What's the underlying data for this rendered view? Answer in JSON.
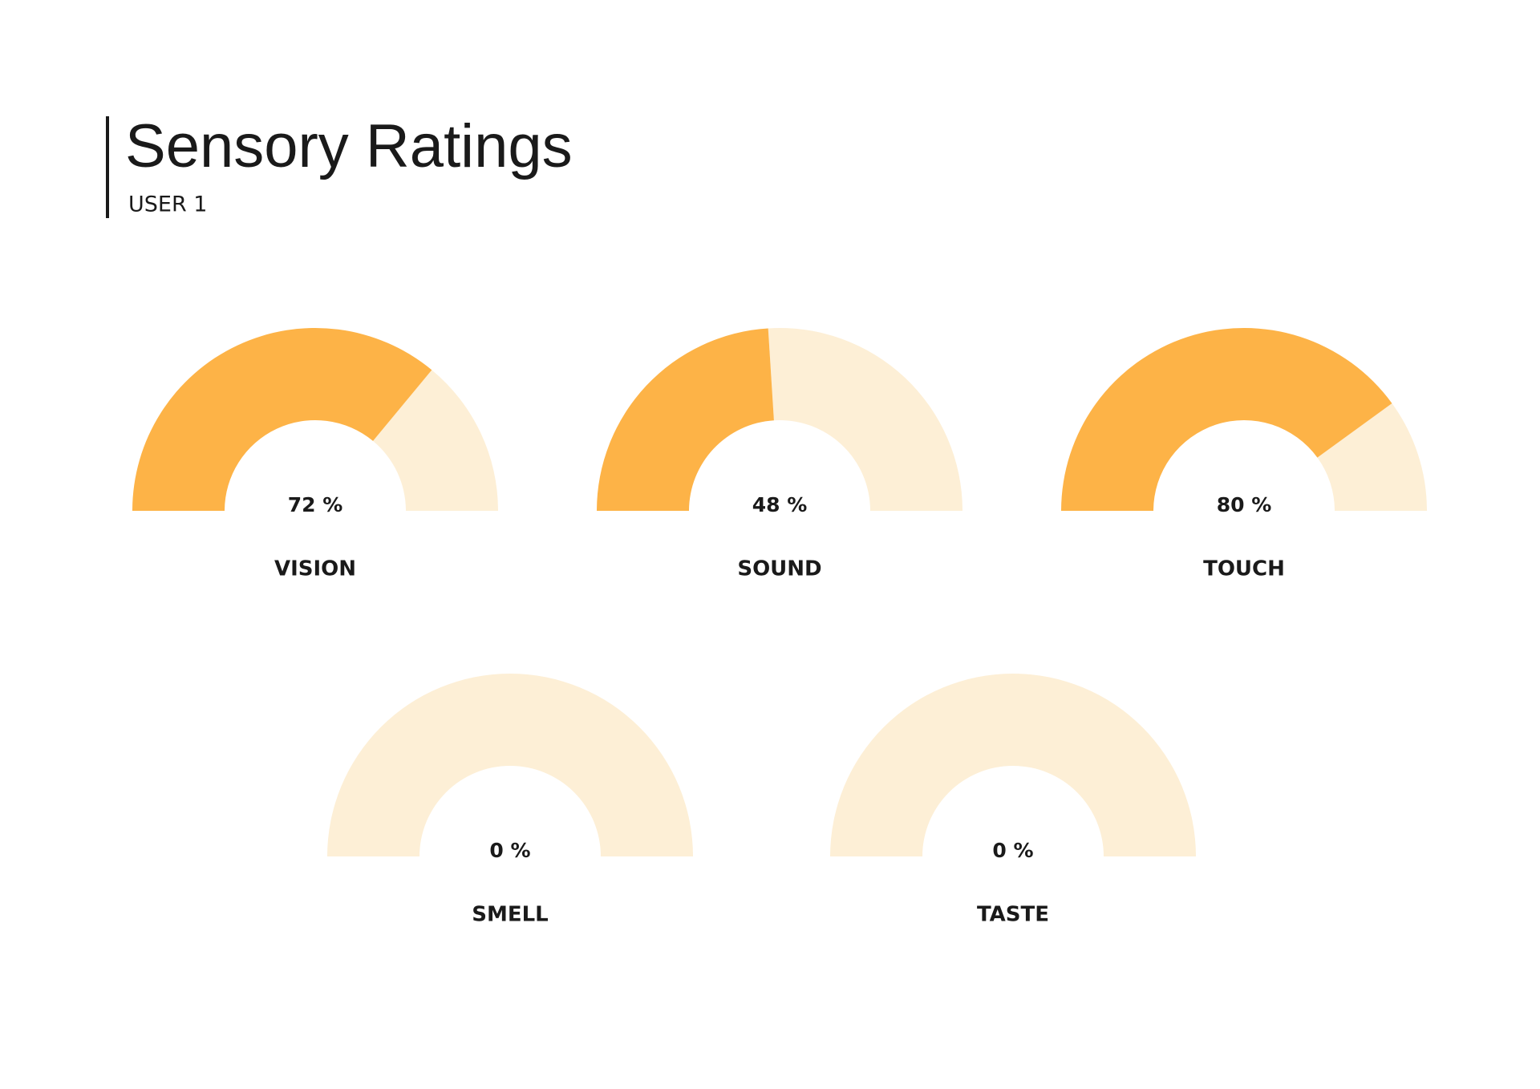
{
  "header": {
    "title": "Sensory Ratings",
    "subtitle": "USER 1"
  },
  "chart_data": [
    {
      "type": "gauge",
      "title": "VISION",
      "values": [
        72
      ],
      "value_labels": [
        "72 %"
      ],
      "ylim": [
        0,
        100
      ],
      "color": "#fdb347",
      "track_color": "#fdefd6"
    },
    {
      "type": "gauge",
      "title": "SOUND",
      "values": [
        48
      ],
      "value_labels": [
        "48 %"
      ],
      "ylim": [
        0,
        100
      ],
      "color": "#fdb347",
      "track_color": "#fdefd6"
    },
    {
      "type": "gauge",
      "title": "TOUCH",
      "values": [
        80
      ],
      "value_labels": [
        "80 %"
      ],
      "ylim": [
        0,
        100
      ],
      "color": "#fdb347",
      "track_color": "#fdefd6"
    },
    {
      "type": "gauge",
      "title": "SMELL",
      "values": [
        0
      ],
      "value_labels": [
        "0 %"
      ],
      "ylim": [
        0,
        100
      ],
      "color": "#fdb347",
      "track_color": "#fdefd6"
    },
    {
      "type": "gauge",
      "title": "TASTE",
      "values": [
        0
      ],
      "value_labels": [
        "0 %"
      ],
      "ylim": [
        0,
        100
      ],
      "color": "#fdb347",
      "track_color": "#fdefd6"
    }
  ]
}
